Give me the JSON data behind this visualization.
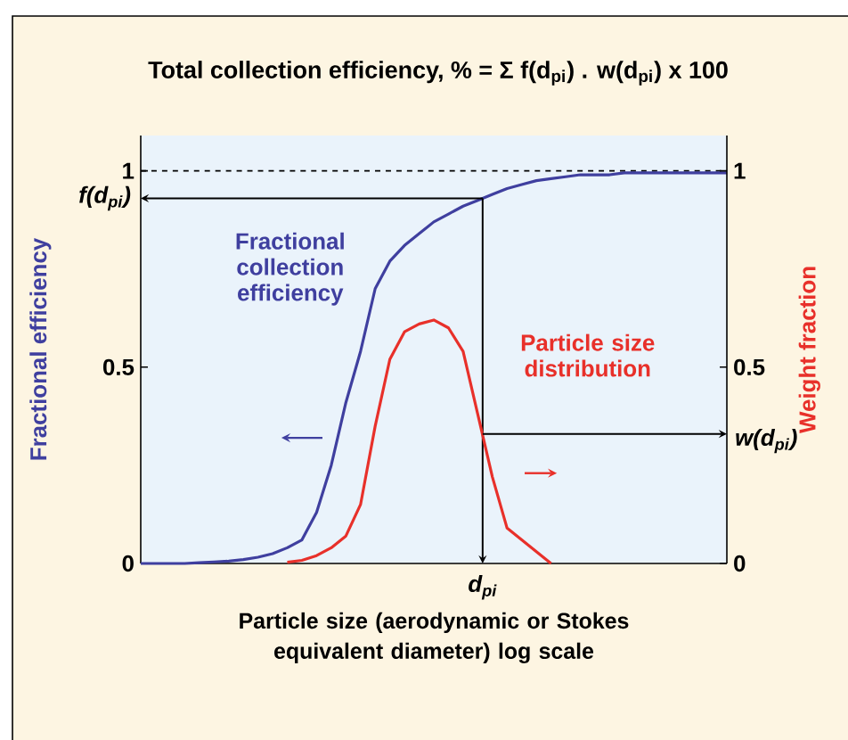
{
  "chart_data": {
    "type": "line",
    "title": "Total collection efficiency, % = Σ f(d$_{pi}$) . w(d$_{pi}$) x 100",
    "xlabel": "Particle size (aerodynamic or Stokes equivalent diameter) log scale",
    "ylabel": "Fractional efficiency",
    "y2label": "Weight fraction",
    "categories": [
      null,
      null,
      null,
      null,
      null,
      null,
      null,
      null,
      null,
      null,
      null,
      null,
      null,
      null,
      null,
      null,
      null,
      null,
      null,
      null,
      null,
      null,
      null,
      null,
      null,
      null,
      null,
      null,
      null,
      null,
      null,
      null,
      null,
      null,
      null,
      null,
      null,
      null,
      null,
      null,
      null
    ],
    "series": [
      {
        "name": "Fractional collection efficiency",
        "color": "#3f3f9f",
        "values": [
          0,
          0,
          0,
          0,
          0.002,
          0.004,
          0.006,
          0.01,
          0.016,
          0.025,
          0.04,
          0.06,
          0.13,
          0.25,
          0.41,
          0.54,
          0.7,
          0.77,
          0.81,
          0.84,
          0.87,
          0.89,
          0.91,
          0.925,
          0.94,
          0.955,
          0.965,
          0.975,
          0.98,
          0.985,
          0.99,
          0.99,
          0.99,
          0.995,
          0.995,
          0.995,
          0.995,
          0.995,
          0.995,
          0.995,
          0.995
        ]
      },
      {
        "name": "Particle size distribution",
        "color": "#e8302a",
        "axis": "y2",
        "values": [
          null,
          null,
          null,
          null,
          null,
          null,
          null,
          null,
          null,
          null,
          0.003,
          0.008,
          0.02,
          0.04,
          0.07,
          0.15,
          0.35,
          0.52,
          0.59,
          0.61,
          0.62,
          0.6,
          0.54,
          0.38,
          0.22,
          0.09,
          0.06,
          0.03,
          0,
          null,
          null,
          null,
          null,
          null,
          null,
          null,
          null,
          null,
          null,
          null,
          null
        ]
      }
    ],
    "ylim": [
      0,
      1.09
    ],
    "yticks": [
      0,
      0.5,
      1
    ],
    "y2lim": [
      0,
      1.09
    ],
    "y2ticks": [
      0,
      0.5,
      1
    ],
    "ref_lines": [
      {
        "axis": "y",
        "value": 1,
        "line_style": "dashed"
      },
      {
        "axis": "y",
        "value": 0.93,
        "label": "f(d$_{pi}$)"
      },
      {
        "axis": "y2",
        "value": 0.33,
        "label": "w(d$_{pi}$)"
      }
    ],
    "annotations": [
      "d$_{pi}$"
    ],
    "legend": false,
    "grid": false,
    "marker": "none",
    "line_style": "solid"
  }
}
